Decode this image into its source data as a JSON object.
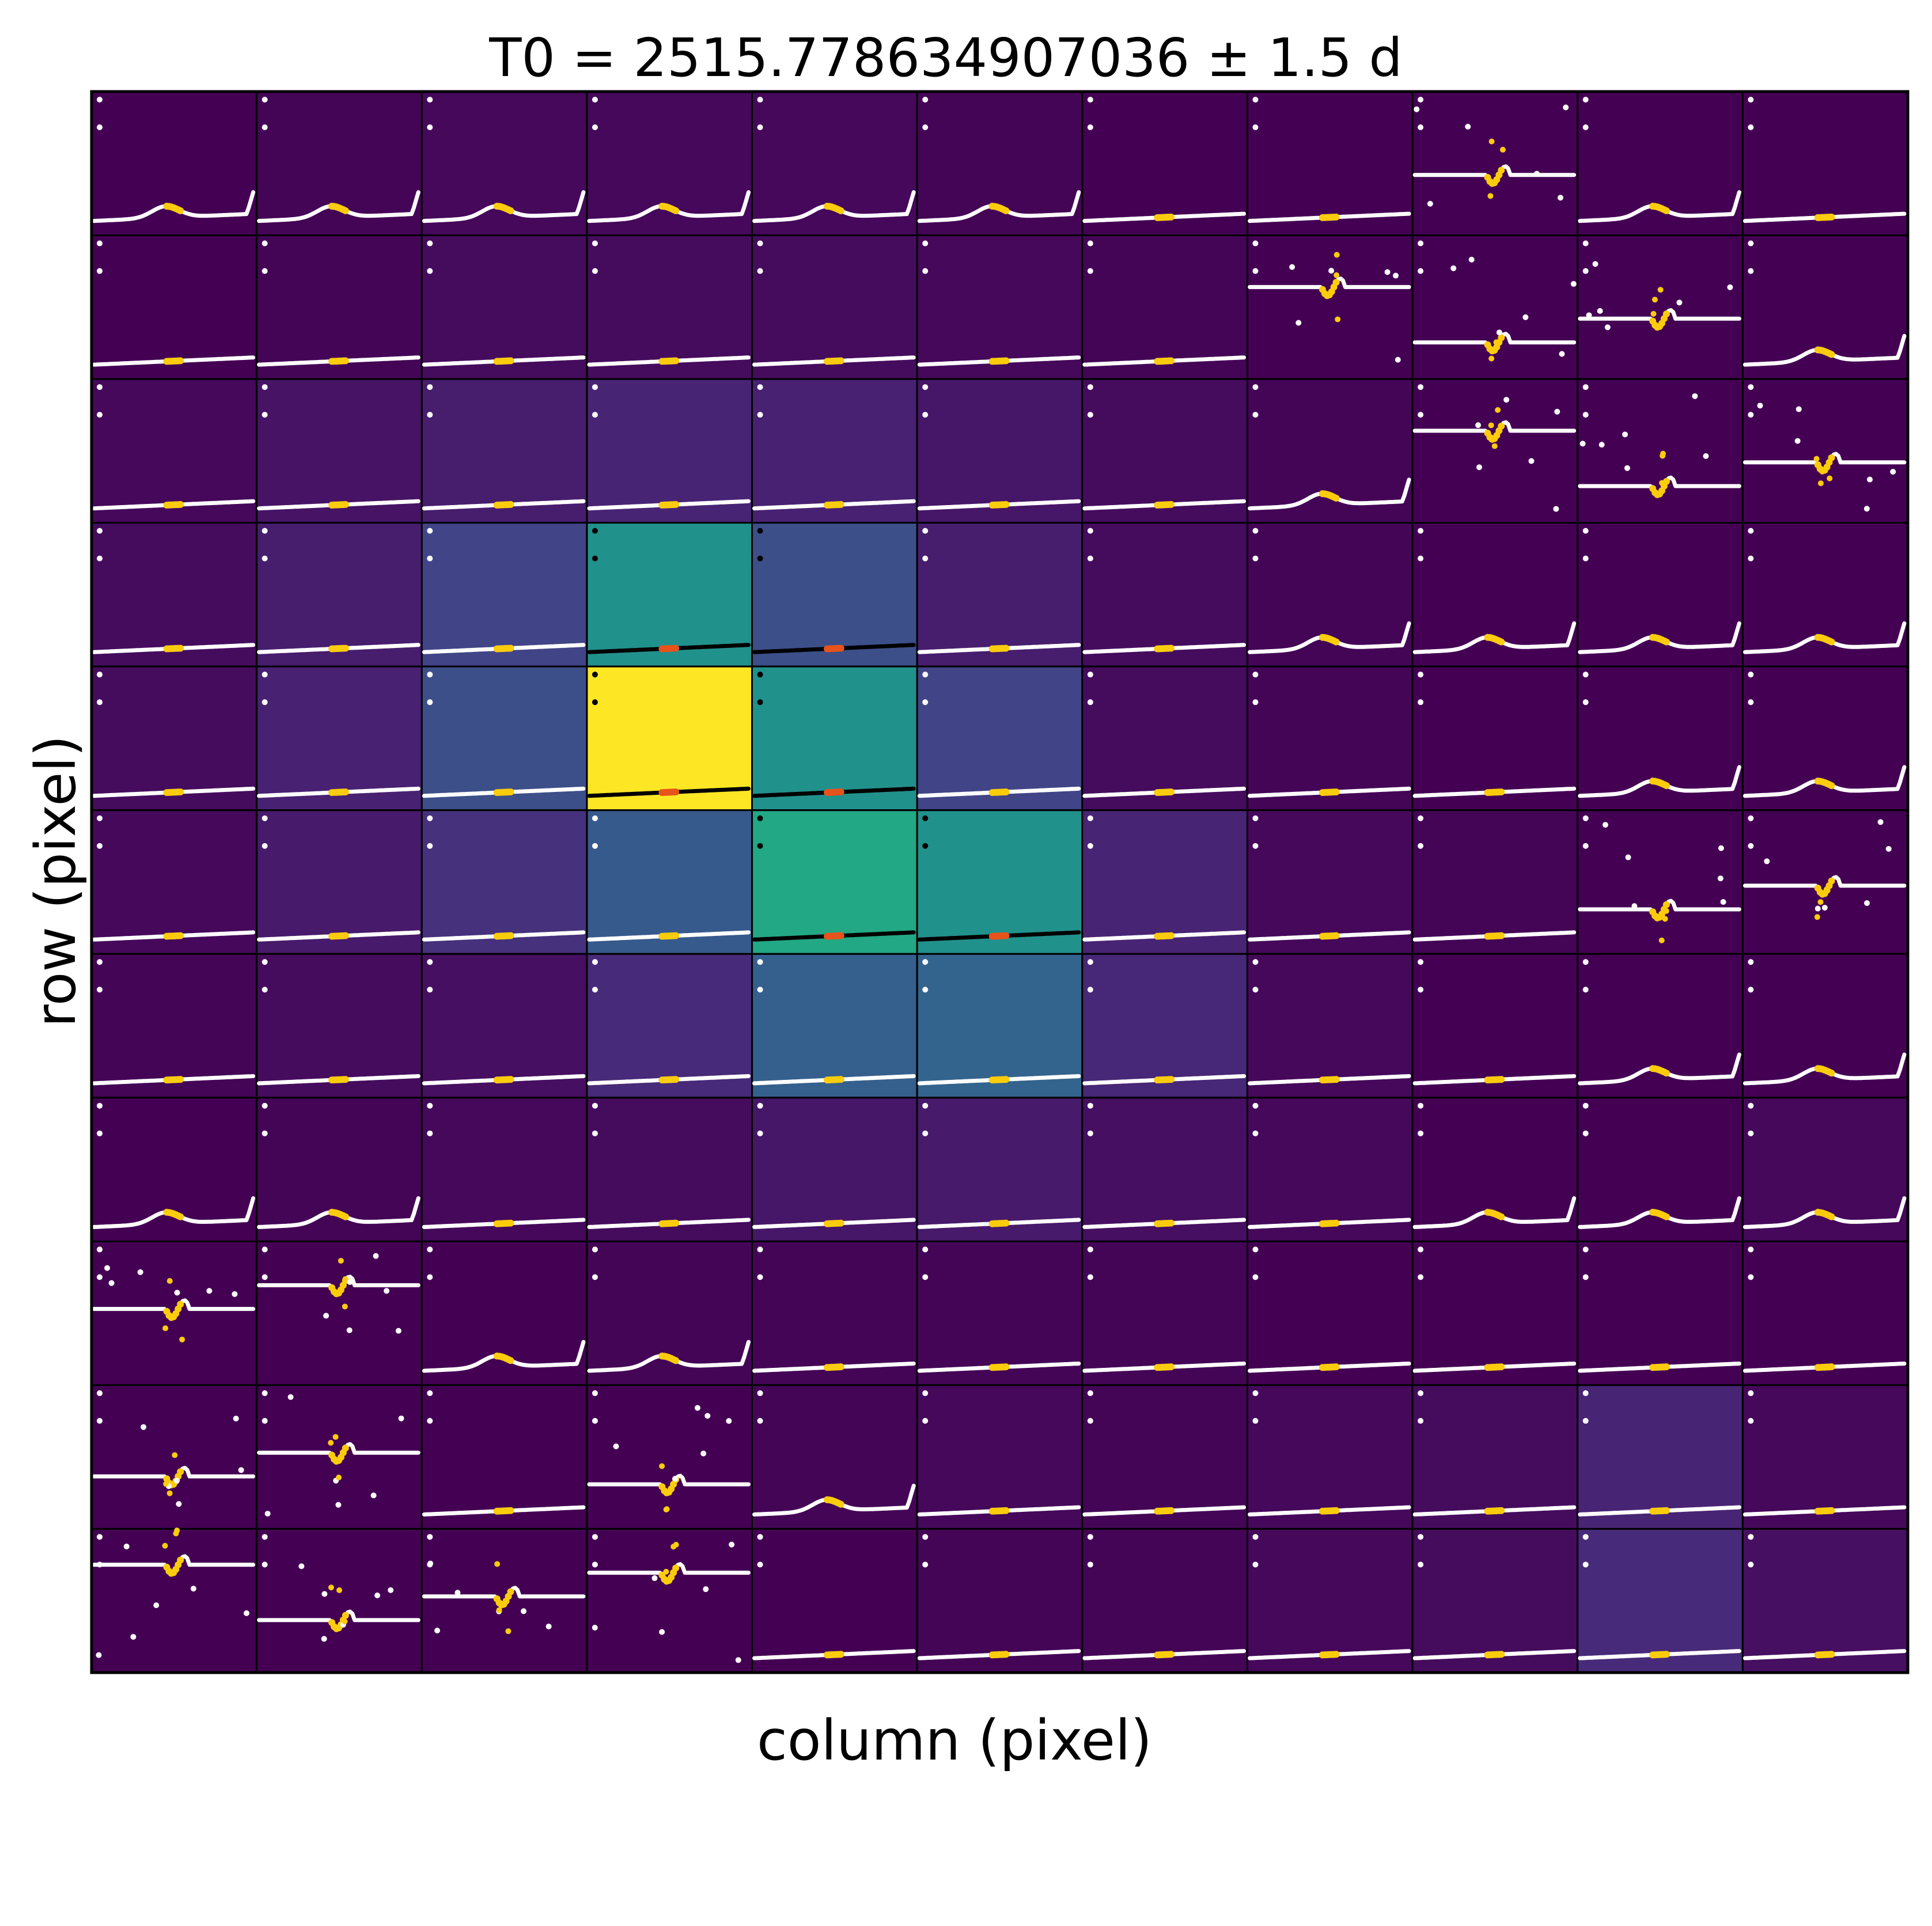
{
  "chart_data": {
    "type": "heatmap",
    "title": "T0 = 2515.778634907036 ± 1.5 d",
    "xlabel": "column (pixel)",
    "ylabel": "row (pixel)",
    "grid": {
      "rows": 11,
      "cols": 11
    },
    "colormap": "viridis",
    "flux_levels": [
      [
        0.0,
        0.01,
        0.02,
        0.02,
        0.02,
        0.01,
        0.0,
        0.0,
        0.0,
        0.0,
        0.0
      ],
      [
        0.0,
        0.01,
        0.03,
        0.03,
        0.03,
        0.02,
        0.01,
        0.0,
        0.0,
        0.0,
        0.0
      ],
      [
        0.02,
        0.05,
        0.08,
        0.1,
        0.09,
        0.06,
        0.03,
        0.01,
        0.0,
        0.0,
        0.0
      ],
      [
        0.03,
        0.08,
        0.2,
        0.5,
        0.24,
        0.08,
        0.03,
        0.01,
        0.0,
        0.0,
        0.0
      ],
      [
        0.03,
        0.09,
        0.24,
        1.0,
        0.5,
        0.2,
        0.03,
        0.01,
        0.0,
        0.0,
        0.0
      ],
      [
        0.02,
        0.07,
        0.14,
        0.28,
        0.6,
        0.5,
        0.1,
        0.02,
        0.01,
        0.0,
        0.0
      ],
      [
        0.01,
        0.03,
        0.04,
        0.12,
        0.3,
        0.32,
        0.11,
        0.02,
        0.0,
        0.0,
        0.0
      ],
      [
        0.0,
        0.01,
        0.02,
        0.03,
        0.06,
        0.07,
        0.04,
        0.02,
        0.0,
        0.0,
        0.02
      ],
      [
        0.0,
        0.0,
        0.0,
        0.01,
        0.01,
        0.01,
        0.01,
        0.0,
        0.0,
        0.0,
        0.0
      ],
      [
        0.0,
        0.0,
        0.0,
        0.0,
        0.01,
        0.02,
        0.01,
        0.02,
        0.03,
        0.1,
        0.02
      ],
      [
        0.0,
        0.0,
        0.0,
        0.0,
        0.0,
        0.01,
        0.01,
        0.02,
        0.03,
        0.12,
        0.04
      ]
    ],
    "lightcurve_shapes": [
      [
        "bump",
        "bump",
        "bump",
        "bump",
        "bump",
        "bump",
        "flat",
        "flat",
        "noisy",
        "bump",
        "flat"
      ],
      [
        "flat",
        "flat",
        "flat",
        "flat",
        "flat",
        "flat",
        "flat",
        "noisy",
        "noisy",
        "noisy",
        "bump"
      ],
      [
        "flat",
        "flat",
        "flat",
        "flat",
        "flat",
        "flat",
        "flat",
        "bump",
        "noisy",
        "noisy",
        "noisy"
      ],
      [
        "flat",
        "flat",
        "flat",
        "flat",
        "flat",
        "flat",
        "flat",
        "bump",
        "bump",
        "bump",
        "bump"
      ],
      [
        "flat",
        "flat",
        "flat",
        "flat",
        "flat",
        "flat",
        "flat",
        "flat",
        "flat",
        "bump",
        "bump"
      ],
      [
        "flat",
        "flat",
        "flat",
        "flat",
        "flat",
        "flat",
        "flat",
        "flat",
        "flat",
        "noisy",
        "noisy"
      ],
      [
        "flat",
        "flat",
        "flat",
        "flat",
        "flat",
        "flat",
        "flat",
        "flat",
        "flat",
        "bump",
        "bump"
      ],
      [
        "bump",
        "bump",
        "flat",
        "flat",
        "flat",
        "flat",
        "flat",
        "flat",
        "bump",
        "bump",
        "bump"
      ],
      [
        "noisy",
        "noisy",
        "bump",
        "bump",
        "flat",
        "flat",
        "flat",
        "flat",
        "flat",
        "flat",
        "flat"
      ],
      [
        "noisy",
        "noisy",
        "flat",
        "noisy",
        "bump",
        "flat",
        "flat",
        "flat",
        "flat",
        "flat",
        "flat"
      ],
      [
        "noisy",
        "noisy",
        "noisy",
        "noisy",
        "flat",
        "flat",
        "flat",
        "flat",
        "flat",
        "flat",
        "flat"
      ]
    ],
    "aperture_pixels": [
      [
        3,
        3
      ],
      [
        3,
        4
      ],
      [
        4,
        3
      ],
      [
        4,
        4
      ],
      [
        5,
        4
      ],
      [
        5,
        5
      ]
    ],
    "colors": {
      "lightcurve": "#ffffff",
      "aperture_lightcurve": "#000000",
      "in_transit": "#fbcc0c",
      "aperture_in_transit": "#e8531a",
      "cell_border": "#000000"
    }
  }
}
